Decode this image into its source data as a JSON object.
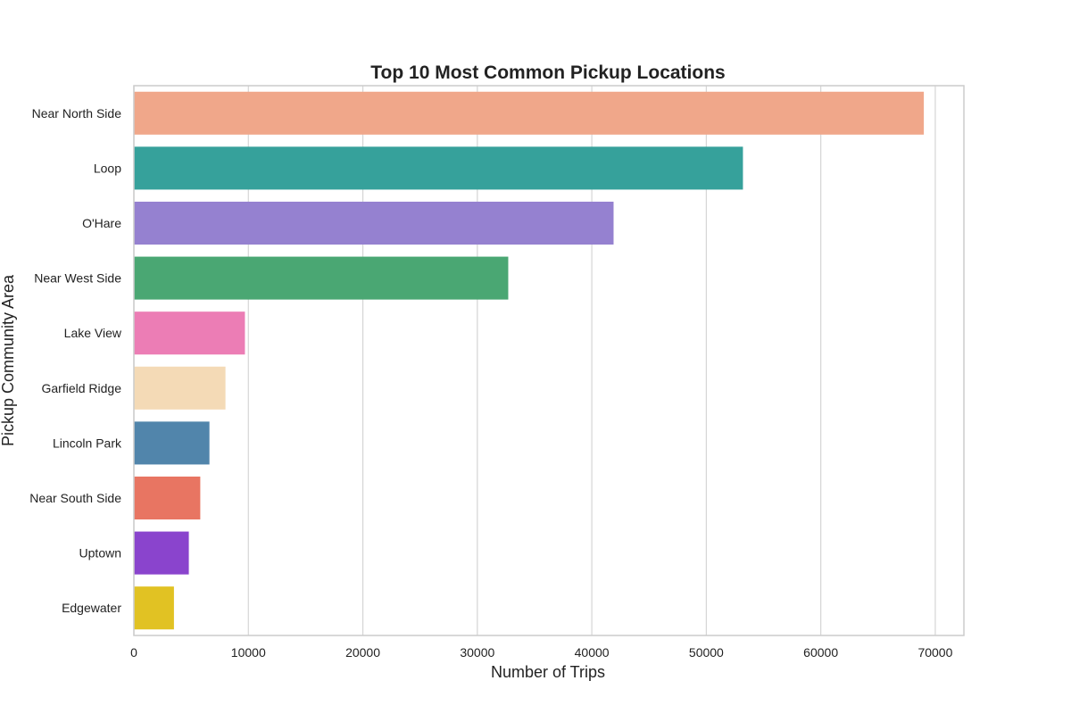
{
  "chart_data": {
    "type": "bar",
    "orientation": "horizontal",
    "title": "Top 10 Most Common Pickup Locations",
    "xlabel": "Number of Trips",
    "ylabel": "Pickup Community Area",
    "xlim": [
      0,
      72500
    ],
    "xticks": [
      0,
      10000,
      20000,
      30000,
      40000,
      50000,
      60000,
      70000
    ],
    "grid": "vertical",
    "categories": [
      "Near North Side",
      "Loop",
      "O'Hare",
      "Near West Side",
      "Lake View",
      "Garfield Ridge",
      "Lincoln Park",
      "Near South Side",
      "Uptown",
      "Edgewater"
    ],
    "values": [
      69000,
      53200,
      41900,
      32700,
      9700,
      8000,
      6600,
      5800,
      4800,
      3500
    ],
    "colors": [
      "#f0a78a",
      "#36a19b",
      "#9581d0",
      "#4aa773",
      "#ec7db5",
      "#f4dab6",
      "#5185ab",
      "#e87562",
      "#8a44cd",
      "#e1c223"
    ]
  }
}
